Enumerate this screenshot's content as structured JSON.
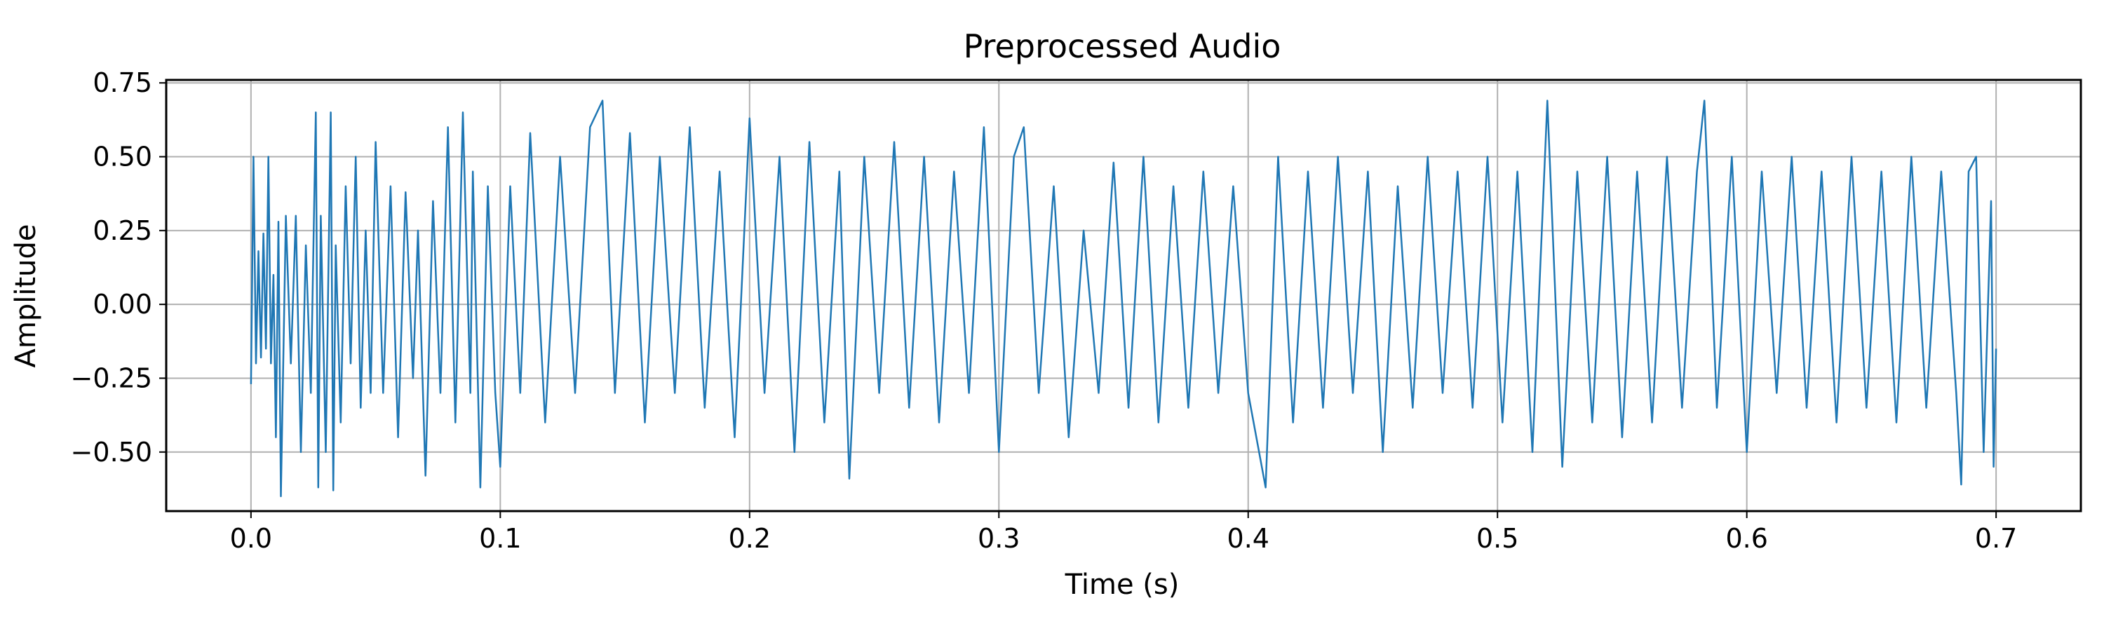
{
  "chart_data": {
    "type": "line",
    "title": "Preprocessed Audio",
    "xlabel": "Time (s)",
    "ylabel": "Amplitude",
    "xlim": [
      -0.034,
      0.734
    ],
    "ylim": [
      -0.7,
      0.76
    ],
    "xticks": [
      0.0,
      0.1,
      0.2,
      0.3,
      0.4,
      0.5,
      0.6,
      0.7
    ],
    "xtick_labels": [
      "0.0",
      "0.1",
      "0.2",
      "0.3",
      "0.4",
      "0.5",
      "0.6",
      "0.7"
    ],
    "yticks": [
      0.75,
      0.5,
      0.25,
      0.0,
      -0.25,
      -0.5
    ],
    "ytick_labels": [
      "0.75",
      "0.50",
      "0.25",
      "0.00",
      "−0.25",
      "−0.50"
    ],
    "grid": true,
    "line_color": "#1f77b4",
    "series": [
      {
        "x": [
          0.0,
          0.001,
          0.002,
          0.003,
          0.004,
          0.005,
          0.006,
          0.007,
          0.008,
          0.009,
          0.01,
          0.011,
          0.012,
          0.014,
          0.016,
          0.018,
          0.02,
          0.022,
          0.024,
          0.026,
          0.027,
          0.028,
          0.03,
          0.032,
          0.033,
          0.034,
          0.036,
          0.038,
          0.04,
          0.042,
          0.044,
          0.046,
          0.048,
          0.05,
          0.053,
          0.056,
          0.059,
          0.062,
          0.065,
          0.067,
          0.07,
          0.073,
          0.076,
          0.079,
          0.082,
          0.085,
          0.088,
          0.089,
          0.092,
          0.095,
          0.098,
          0.1,
          0.104,
          0.108,
          0.112,
          0.118,
          0.124,
          0.13,
          0.136,
          0.141,
          0.146,
          0.152,
          0.158,
          0.164,
          0.17,
          0.176,
          0.182,
          0.188,
          0.194,
          0.2,
          0.206,
          0.212,
          0.218,
          0.224,
          0.23,
          0.236,
          0.24,
          0.246,
          0.252,
          0.258,
          0.264,
          0.27,
          0.276,
          0.282,
          0.288,
          0.294,
          0.3,
          0.306,
          0.31,
          0.316,
          0.322,
          0.328,
          0.334,
          0.34,
          0.346,
          0.352,
          0.358,
          0.364,
          0.37,
          0.376,
          0.382,
          0.388,
          0.394,
          0.4,
          0.407,
          0.412,
          0.418,
          0.424,
          0.43,
          0.436,
          0.442,
          0.448,
          0.454,
          0.46,
          0.466,
          0.472,
          0.478,
          0.484,
          0.49,
          0.496,
          0.502,
          0.508,
          0.514,
          0.52,
          0.526,
          0.532,
          0.538,
          0.544,
          0.55,
          0.556,
          0.562,
          0.568,
          0.574,
          0.58,
          0.583,
          0.588,
          0.594,
          0.6,
          0.606,
          0.612,
          0.618,
          0.624,
          0.63,
          0.636,
          0.642,
          0.648,
          0.654,
          0.66,
          0.666,
          0.672,
          0.678,
          0.684,
          0.686,
          0.689,
          0.692,
          0.695,
          0.698,
          0.699,
          0.7
        ],
        "y": [
          -0.27,
          0.5,
          -0.2,
          0.18,
          -0.18,
          0.24,
          -0.15,
          0.5,
          -0.2,
          0.1,
          -0.45,
          0.28,
          -0.65,
          0.3,
          -0.2,
          0.3,
          -0.5,
          0.2,
          -0.3,
          0.65,
          -0.62,
          0.3,
          -0.5,
          0.65,
          -0.63,
          0.2,
          -0.4,
          0.4,
          -0.2,
          0.5,
          -0.35,
          0.25,
          -0.3,
          0.55,
          -0.3,
          0.4,
          -0.45,
          0.38,
          -0.25,
          0.25,
          -0.58,
          0.35,
          -0.3,
          0.6,
          -0.4,
          0.65,
          -0.3,
          0.45,
          -0.62,
          0.4,
          -0.3,
          -0.55,
          0.4,
          -0.3,
          0.58,
          -0.4,
          0.5,
          -0.3,
          0.6,
          0.69,
          -0.3,
          0.58,
          -0.4,
          0.5,
          -0.3,
          0.6,
          -0.35,
          0.45,
          -0.45,
          0.63,
          -0.3,
          0.5,
          -0.5,
          0.55,
          -0.4,
          0.45,
          -0.59,
          0.5,
          -0.3,
          0.55,
          -0.35,
          0.5,
          -0.4,
          0.45,
          -0.3,
          0.6,
          -0.5,
          0.5,
          0.6,
          -0.3,
          0.4,
          -0.45,
          0.25,
          -0.3,
          0.48,
          -0.35,
          0.5,
          -0.4,
          0.4,
          -0.35,
          0.45,
          -0.3,
          0.4,
          -0.3,
          -0.62,
          0.5,
          -0.4,
          0.45,
          -0.35,
          0.5,
          -0.3,
          0.45,
          -0.5,
          0.4,
          -0.35,
          0.5,
          -0.3,
          0.45,
          -0.35,
          0.5,
          -0.4,
          0.45,
          -0.5,
          0.69,
          -0.55,
          0.45,
          -0.4,
          0.5,
          -0.45,
          0.45,
          -0.4,
          0.5,
          -0.35,
          0.45,
          0.69,
          -0.35,
          0.5,
          -0.5,
          0.45,
          -0.3,
          0.5,
          -0.35,
          0.45,
          -0.4,
          0.5,
          -0.35,
          0.45,
          -0.4,
          0.5,
          -0.35,
          0.45,
          -0.3,
          -0.61,
          0.45,
          0.5,
          -0.5,
          0.35,
          -0.55,
          -0.15
        ]
      }
    ]
  }
}
